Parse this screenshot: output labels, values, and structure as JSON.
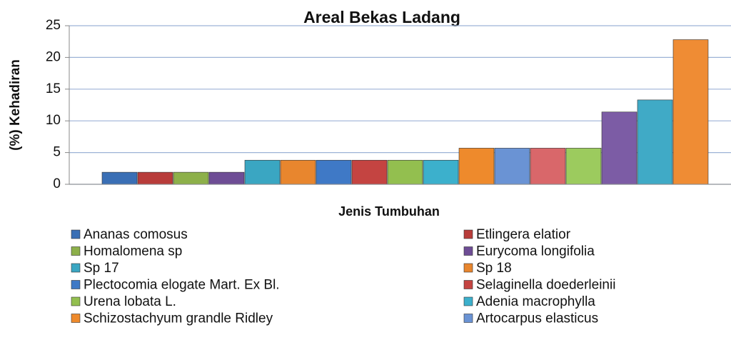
{
  "chart_data": {
    "type": "bar",
    "title": "Areal Bekas Ladang",
    "x_label": "Jenis Tumbuhan",
    "y_label": "(%) Kehadiran",
    "ylim": [
      0,
      25
    ],
    "yticks": [
      0,
      5,
      10,
      15,
      20,
      25
    ],
    "grid": true,
    "series": [
      {
        "name": "Ananas comosus",
        "color": "#3a6fb5",
        "values": [
          1.9
        ]
      },
      {
        "name": "Etlingera elatior",
        "color": "#b83c3a",
        "values": [
          1.9
        ]
      },
      {
        "name": "Homalomena sp",
        "color": "#8db04a",
        "values": [
          1.9
        ]
      },
      {
        "name": "Eurycoma longifolia",
        "color": "#6e4d95",
        "values": [
          1.9
        ]
      },
      {
        "name": "Sp 17",
        "color": "#3aa6c2",
        "values": [
          3.8
        ]
      },
      {
        "name": "Sp 18",
        "color": "#e8862e",
        "values": [
          3.8
        ]
      },
      {
        "name": "Plectocomia elogate Mart. Ex Bl.",
        "color": "#3f79c6",
        "values": [
          3.8
        ]
      },
      {
        "name": "Selaginella doederleinii",
        "color": "#c44441",
        "values": [
          3.8
        ]
      },
      {
        "name": "Urena lobata L.",
        "color": "#93bf4f",
        "values": [
          3.8
        ]
      },
      {
        "name": "Adenia macrophylla",
        "color": "#3cb0cc",
        "values": [
          3.8
        ]
      },
      {
        "name": "Schizostachyum grandle Ridley",
        "color": "#ee8a2c",
        "values": [
          5.7
        ]
      },
      {
        "name": "Artocarpus elasticus",
        "color": "#6a93d4",
        "values": [
          5.7
        ]
      },
      {
        "name": null,
        "color": "#d9676a",
        "values": [
          5.7
        ]
      },
      {
        "name": null,
        "color": "#9ccb5e",
        "values": [
          5.7
        ]
      },
      {
        "name": null,
        "color": "#7c5ca5",
        "values": [
          11.4
        ]
      },
      {
        "name": null,
        "color": "#40aac6",
        "values": [
          13.3
        ]
      },
      {
        "name": null,
        "color": "#ef8c34",
        "values": [
          22.8
        ]
      }
    ]
  }
}
